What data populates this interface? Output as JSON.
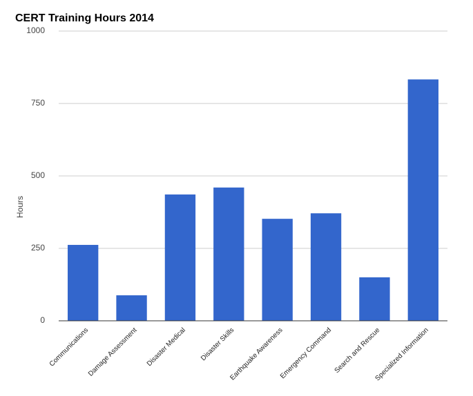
{
  "chart_data": {
    "type": "bar",
    "title": "CERT Training Hours 2014",
    "y_label": "Hours",
    "categories": [
      "Communications",
      "Damage Assessment",
      "Disaster Medical",
      "Disaster Skills",
      "Earthquake Awareness",
      "Emergency Command",
      "Search and Rescue",
      "Specialized Information"
    ],
    "values": [
      262,
      88,
      436,
      460,
      352,
      371,
      150,
      833
    ],
    "color": "#3366cc",
    "ylim": [
      0,
      1000
    ],
    "yticks": [
      0,
      250,
      500,
      750,
      1000
    ],
    "grid": true
  }
}
